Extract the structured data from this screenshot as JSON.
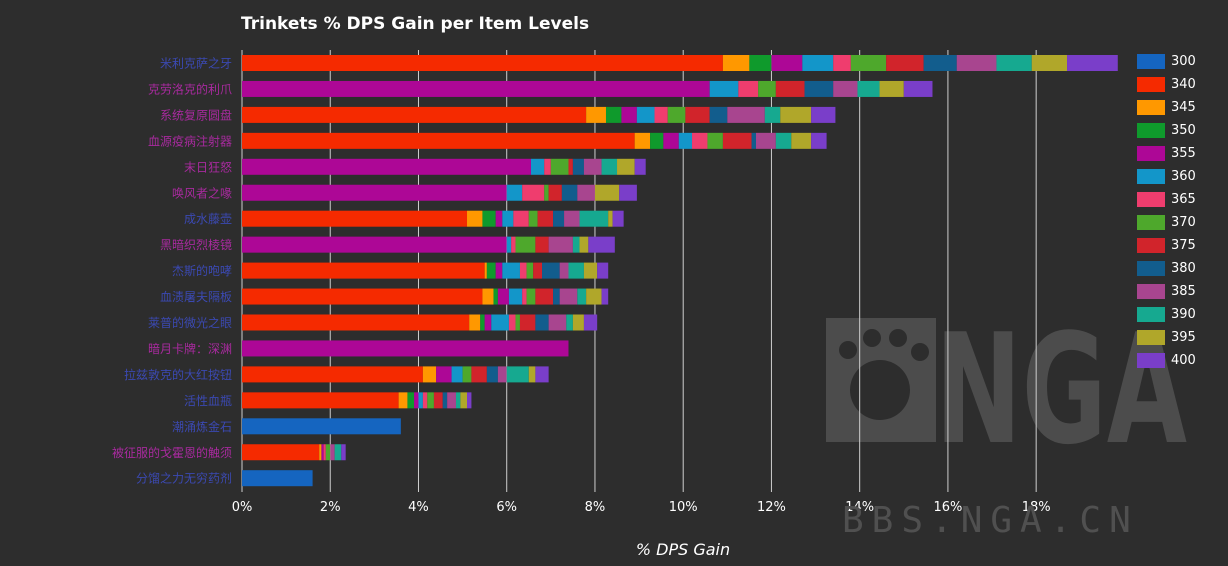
{
  "page": {
    "watermark_text": "BBS.NGA.CN"
  },
  "chart_data": {
    "type": "bar",
    "stacked": true,
    "orientation": "horizontal",
    "title": "Trinkets % DPS Gain per Item Levels",
    "xlabel": "% DPS Gain",
    "ylabel": "",
    "xlim": [
      0,
      20
    ],
    "x_ticks": [
      "0%",
      "2%",
      "4%",
      "6%",
      "8%",
      "10%",
      "12%",
      "14%",
      "16%",
      "18%"
    ],
    "grid": true,
    "legend_position": "right",
    "series_colors": {
      "300": "#1565c0",
      "340": "#f52a00",
      "345": "#ff9800",
      "350": "#0f9a2c",
      "355": "#ad0796",
      "360": "#1396c9",
      "365": "#ef3d6e",
      "370": "#4ea82c",
      "375": "#d1242b",
      "380": "#125d8d",
      "385": "#a8458f",
      "390": "#16a990",
      "395": "#b0a72a",
      "400": "#7a3ec9"
    },
    "legend": [
      "300",
      "340",
      "345",
      "350",
      "355",
      "360",
      "365",
      "370",
      "375",
      "380",
      "385",
      "390",
      "395",
      "400"
    ],
    "categories": [
      "米利克萨之牙",
      "克劳洛克的利爪",
      "系统复原圆盘",
      "血源疫病注射器",
      "末日狂怒",
      "唤风者之喙",
      "成水藤壶",
      "黑暗织烈棱镜",
      "杰斯的咆哮",
      "血渍屠夫隔板",
      "莱普的微光之眼",
      "暗月卡牌：深渊",
      "拉兹敦克的大红按钮",
      "活性血瓶",
      "潮涌炼金石",
      "被征服的戈霍恩的触须",
      "分馏之力无穷药剂"
    ],
    "category_colors": [
      "#3b49b2",
      "#a82a9e",
      "#a82a9e",
      "#a82a9e",
      "#a82a9e",
      "#a82a9e",
      "#3b49b2",
      "#a82a9e",
      "#3b49b2",
      "#3b49b2",
      "#3b49b2",
      "#a82a9e",
      "#3b49b2",
      "#3b49b2",
      "#3b49b2",
      "#a82a9e",
      "#3b49b2"
    ],
    "rows": [
      [
        {
          "s": "340",
          "v": 10.9
        },
        {
          "s": "345",
          "v": 0.6
        },
        {
          "s": "350",
          "v": 0.5
        },
        {
          "s": "355",
          "v": 0.7
        },
        {
          "s": "360",
          "v": 0.7
        },
        {
          "s": "365",
          "v": 0.4
        },
        {
          "s": "370",
          "v": 0.8
        },
        {
          "s": "375",
          "v": 0.85
        },
        {
          "s": "380",
          "v": 0.75
        },
        {
          "s": "385",
          "v": 0.9
        },
        {
          "s": "390",
          "v": 0.8
        },
        {
          "s": "395",
          "v": 0.8
        },
        {
          "s": "400",
          "v": 1.15
        }
      ],
      [
        {
          "s": "355",
          "v": 10.6
        },
        {
          "s": "360",
          "v": 0.65
        },
        {
          "s": "365",
          "v": 0.45
        },
        {
          "s": "370",
          "v": 0.4
        },
        {
          "s": "375",
          "v": 0.65
        },
        {
          "s": "380",
          "v": 0.65
        },
        {
          "s": "385",
          "v": 0.55
        },
        {
          "s": "390",
          "v": 0.5
        },
        {
          "s": "395",
          "v": 0.55
        },
        {
          "s": "400",
          "v": 0.65
        }
      ],
      [
        {
          "s": "340",
          "v": 7.8
        },
        {
          "s": "345",
          "v": 0.45
        },
        {
          "s": "350",
          "v": 0.35
        },
        {
          "s": "355",
          "v": 0.35
        },
        {
          "s": "360",
          "v": 0.4
        },
        {
          "s": "365",
          "v": 0.3
        },
        {
          "s": "370",
          "v": 0.4
        },
        {
          "s": "375",
          "v": 0.55
        },
        {
          "s": "380",
          "v": 0.4
        },
        {
          "s": "385",
          "v": 0.85
        },
        {
          "s": "390",
          "v": 0.35
        },
        {
          "s": "395",
          "v": 0.7
        },
        {
          "s": "400",
          "v": 0.55
        }
      ],
      [
        {
          "s": "340",
          "v": 8.9
        },
        {
          "s": "345",
          "v": 0.35
        },
        {
          "s": "350",
          "v": 0.3
        },
        {
          "s": "355",
          "v": 0.35
        },
        {
          "s": "360",
          "v": 0.3
        },
        {
          "s": "365",
          "v": 0.35
        },
        {
          "s": "370",
          "v": 0.35
        },
        {
          "s": "375",
          "v": 0.65
        },
        {
          "s": "380",
          "v": 0.1
        },
        {
          "s": "385",
          "v": 0.45
        },
        {
          "s": "390",
          "v": 0.35
        },
        {
          "s": "395",
          "v": 0.45
        },
        {
          "s": "400",
          "v": 0.35
        }
      ],
      [
        {
          "s": "355",
          "v": 6.55
        },
        {
          "s": "360",
          "v": 0.3
        },
        {
          "s": "365",
          "v": 0.15
        },
        {
          "s": "370",
          "v": 0.4
        },
        {
          "s": "375",
          "v": 0.1
        },
        {
          "s": "380",
          "v": 0.25
        },
        {
          "s": "385",
          "v": 0.4
        },
        {
          "s": "390",
          "v": 0.35
        },
        {
          "s": "395",
          "v": 0.4
        },
        {
          "s": "400",
          "v": 0.25
        }
      ],
      [
        {
          "s": "355",
          "v": 6.0
        },
        {
          "s": "360",
          "v": 0.35
        },
        {
          "s": "365",
          "v": 0.5
        },
        {
          "s": "370",
          "v": 0.1
        },
        {
          "s": "375",
          "v": 0.3
        },
        {
          "s": "380",
          "v": 0.35
        },
        {
          "s": "385",
          "v": 0.4
        },
        {
          "s": "395",
          "v": 0.55
        },
        {
          "s": "400",
          "v": 0.4
        }
      ],
      [
        {
          "s": "340",
          "v": 5.1
        },
        {
          "s": "345",
          "v": 0.35
        },
        {
          "s": "350",
          "v": 0.3
        },
        {
          "s": "355",
          "v": 0.15
        },
        {
          "s": "360",
          "v": 0.25
        },
        {
          "s": "365",
          "v": 0.35
        },
        {
          "s": "370",
          "v": 0.2
        },
        {
          "s": "375",
          "v": 0.35
        },
        {
          "s": "380",
          "v": 0.25
        },
        {
          "s": "385",
          "v": 0.35
        },
        {
          "s": "390",
          "v": 0.65
        },
        {
          "s": "395",
          "v": 0.1
        },
        {
          "s": "400",
          "v": 0.25
        }
      ],
      [
        {
          "s": "355",
          "v": 6.0
        },
        {
          "s": "360",
          "v": 0.1
        },
        {
          "s": "365",
          "v": 0.1
        },
        {
          "s": "370",
          "v": 0.45
        },
        {
          "s": "375",
          "v": 0.3
        },
        {
          "s": "385",
          "v": 0.55
        },
        {
          "s": "390",
          "v": 0.15
        },
        {
          "s": "395",
          "v": 0.2
        },
        {
          "s": "400",
          "v": 0.6
        }
      ],
      [
        {
          "s": "340",
          "v": 5.5
        },
        {
          "s": "345",
          "v": 0.05
        },
        {
          "s": "350",
          "v": 0.2
        },
        {
          "s": "355",
          "v": 0.15
        },
        {
          "s": "360",
          "v": 0.4
        },
        {
          "s": "365",
          "v": 0.15
        },
        {
          "s": "370",
          "v": 0.15
        },
        {
          "s": "375",
          "v": 0.2
        },
        {
          "s": "380",
          "v": 0.4
        },
        {
          "s": "385",
          "v": 0.2
        },
        {
          "s": "390",
          "v": 0.35
        },
        {
          "s": "395",
          "v": 0.3
        },
        {
          "s": "400",
          "v": 0.25
        }
      ],
      [
        {
          "s": "340",
          "v": 5.45
        },
        {
          "s": "345",
          "v": 0.25
        },
        {
          "s": "350",
          "v": 0.1
        },
        {
          "s": "355",
          "v": 0.25
        },
        {
          "s": "360",
          "v": 0.3
        },
        {
          "s": "365",
          "v": 0.1
        },
        {
          "s": "370",
          "v": 0.2
        },
        {
          "s": "375",
          "v": 0.4
        },
        {
          "s": "380",
          "v": 0.15
        },
        {
          "s": "385",
          "v": 0.4
        },
        {
          "s": "390",
          "v": 0.2
        },
        {
          "s": "395",
          "v": 0.35
        },
        {
          "s": "400",
          "v": 0.15
        }
      ],
      [
        {
          "s": "340",
          "v": 5.15
        },
        {
          "s": "345",
          "v": 0.25
        },
        {
          "s": "350",
          "v": 0.1
        },
        {
          "s": "355",
          "v": 0.15
        },
        {
          "s": "360",
          "v": 0.4
        },
        {
          "s": "365",
          "v": 0.15
        },
        {
          "s": "370",
          "v": 0.1
        },
        {
          "s": "375",
          "v": 0.35
        },
        {
          "s": "380",
          "v": 0.3
        },
        {
          "s": "385",
          "v": 0.4
        },
        {
          "s": "390",
          "v": 0.15
        },
        {
          "s": "395",
          "v": 0.25
        },
        {
          "s": "400",
          "v": 0.3
        }
      ],
      [
        {
          "s": "355",
          "v": 7.4
        }
      ],
      [
        {
          "s": "340",
          "v": 4.1
        },
        {
          "s": "345",
          "v": 0.3
        },
        {
          "s": "355",
          "v": 0.35
        },
        {
          "s": "360",
          "v": 0.25
        },
        {
          "s": "370",
          "v": 0.2
        },
        {
          "s": "375",
          "v": 0.35
        },
        {
          "s": "380",
          "v": 0.25
        },
        {
          "s": "385",
          "v": 0.2
        },
        {
          "s": "390",
          "v": 0.5
        },
        {
          "s": "395",
          "v": 0.15
        },
        {
          "s": "400",
          "v": 0.3
        }
      ],
      [
        {
          "s": "340",
          "v": 3.55
        },
        {
          "s": "345",
          "v": 0.2
        },
        {
          "s": "350",
          "v": 0.15
        },
        {
          "s": "355",
          "v": 0.1
        },
        {
          "s": "360",
          "v": 0.1
        },
        {
          "s": "365",
          "v": 0.1
        },
        {
          "s": "370",
          "v": 0.15
        },
        {
          "s": "375",
          "v": 0.2
        },
        {
          "s": "380",
          "v": 0.1
        },
        {
          "s": "385",
          "v": 0.2
        },
        {
          "s": "390",
          "v": 0.1
        },
        {
          "s": "395",
          "v": 0.15
        },
        {
          "s": "400",
          "v": 0.1
        }
      ],
      [
        {
          "s": "300",
          "v": 3.6
        }
      ],
      [
        {
          "s": "340",
          "v": 1.75
        },
        {
          "s": "345",
          "v": 0.05
        },
        {
          "s": "355",
          "v": 0.05
        },
        {
          "s": "365",
          "v": 0.05
        },
        {
          "s": "370",
          "v": 0.1
        },
        {
          "s": "385",
          "v": 0.1
        },
        {
          "s": "390",
          "v": 0.15
        },
        {
          "s": "400",
          "v": 0.1
        }
      ],
      [
        {
          "s": "300",
          "v": 1.6
        }
      ]
    ]
  }
}
